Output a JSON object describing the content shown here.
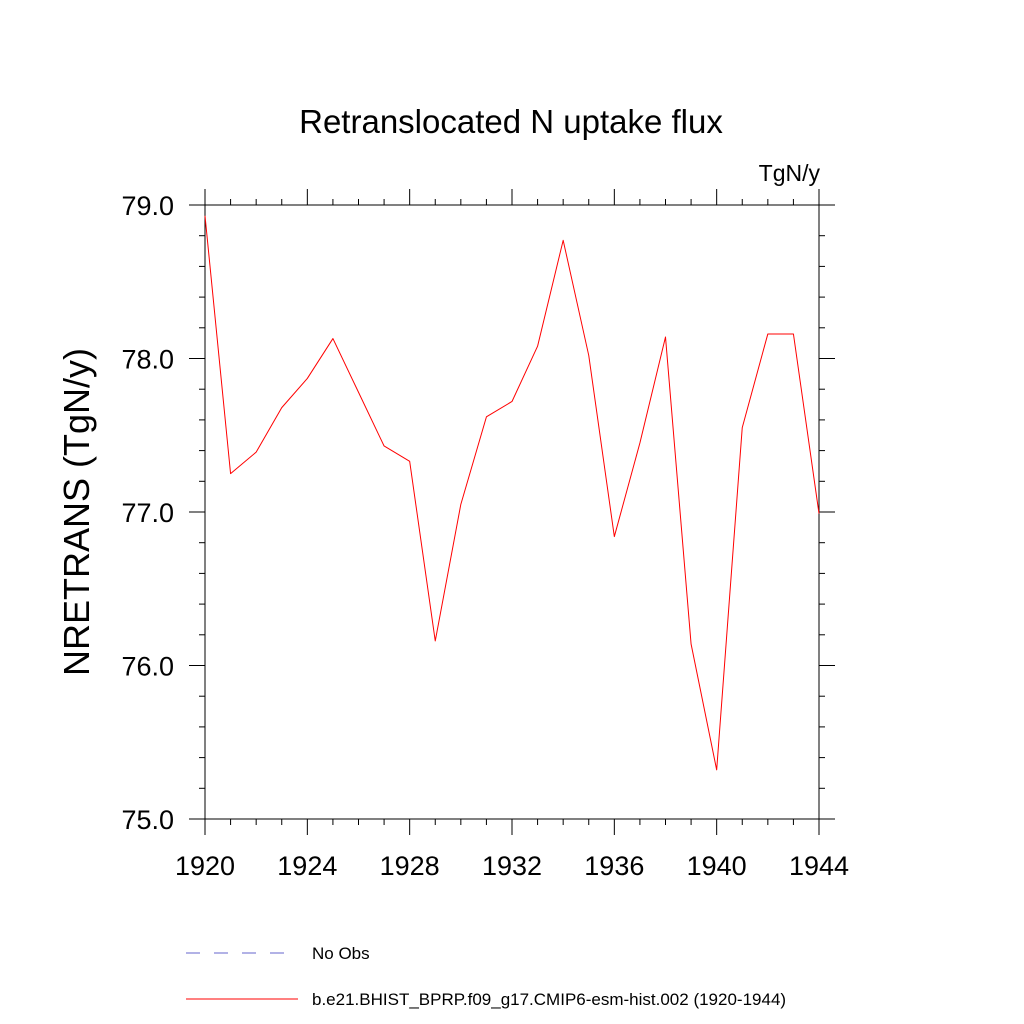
{
  "chart_data": {
    "type": "line",
    "title": "Retranslocated N uptake flux",
    "units_label": "TgN/y",
    "ylabel": "NRETRANS  (TgN/y)",
    "xlabel": "",
    "xlim": [
      1920,
      1944
    ],
    "ylim": [
      75.0,
      79.0
    ],
    "x_ticks": [
      1920,
      1924,
      1928,
      1932,
      1936,
      1940,
      1944
    ],
    "y_ticks": [
      75.0,
      76.0,
      77.0,
      78.0,
      79.0
    ],
    "y_tick_labels": [
      "75.0",
      "76.0",
      "77.0",
      "78.0",
      "79.0"
    ],
    "series": [
      {
        "name": "b.e21.BHIST_BPRP.f09_g17.CMIP6-esm-hist.002 (1920-1944)",
        "color": "#ff0000",
        "style": "solid",
        "x": [
          1920,
          1921,
          1922,
          1923,
          1924,
          1925,
          1926,
          1927,
          1928,
          1929,
          1930,
          1931,
          1932,
          1933,
          1934,
          1935,
          1936,
          1937,
          1938,
          1939,
          1940,
          1941,
          1942,
          1943,
          1944
        ],
        "values": [
          78.93,
          77.25,
          77.39,
          77.68,
          77.87,
          78.13,
          77.78,
          77.43,
          77.33,
          76.16,
          77.05,
          77.62,
          77.72,
          78.08,
          78.77,
          78.02,
          76.84,
          77.45,
          78.14,
          76.14,
          75.32,
          77.55,
          78.16,
          78.16,
          76.99
        ]
      }
    ],
    "legend": [
      {
        "label": "No Obs",
        "color": "#6666cc",
        "style": "dashed"
      },
      {
        "label": "b.e21.BHIST_BPRP.f09_g17.CMIP6-esm-hist.002 (1920-1944)",
        "color": "#ff0000",
        "style": "solid"
      }
    ],
    "legend_position": "bottom"
  }
}
